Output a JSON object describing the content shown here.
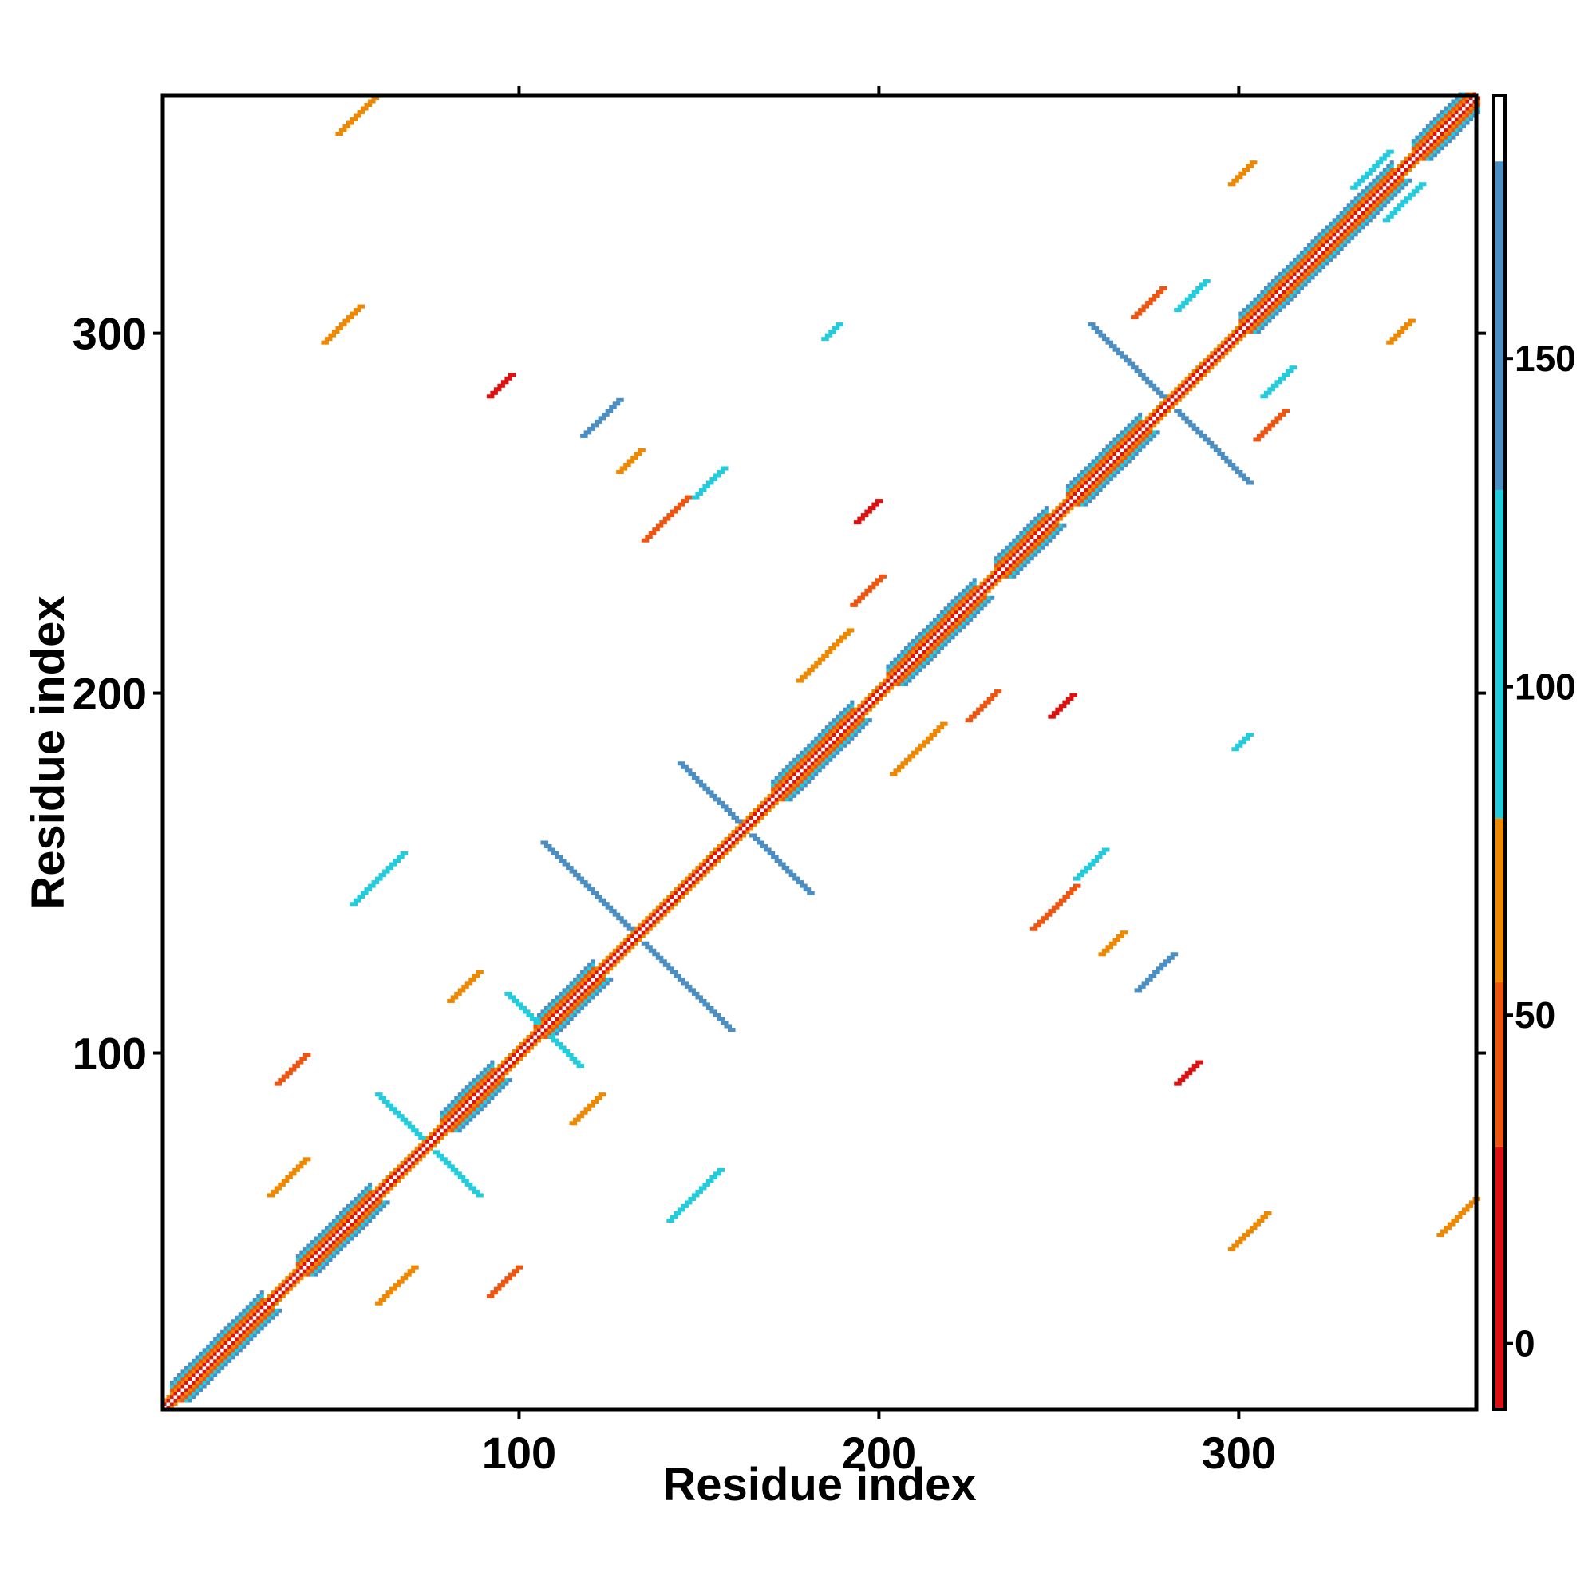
{
  "chart_data": {
    "type": "heatmap",
    "title": "",
    "xlabel": "Residue index",
    "ylabel": "Residue index",
    "xlim": [
      1,
      366
    ],
    "ylim": [
      1,
      366
    ],
    "xticks": [
      100,
      200,
      300
    ],
    "yticks": [
      100,
      200,
      300
    ],
    "colorbar": {
      "range": [
        -10,
        190
      ],
      "ticks": [
        0,
        50,
        100,
        150
      ],
      "bands": [
        {
          "from": -10,
          "to": 30,
          "color": "#dd1111"
        },
        {
          "from": 30,
          "to": 55,
          "color": "#ee5511"
        },
        {
          "from": 55,
          "to": 80,
          "color": "#ee8800"
        },
        {
          "from": 80,
          "to": 180,
          "color": "#22ccdd"
        },
        {
          "from": 180,
          "to": 190,
          "color": "#ffffff"
        }
      ],
      "steel_band": {
        "from": 130,
        "to": 180,
        "color": "#4a8ec4"
      }
    },
    "features": [
      {
        "kind": "diagonal",
        "x0": 1,
        "x1": 366
      },
      {
        "kind": "helix",
        "x0": 3,
        "x1": 28
      },
      {
        "kind": "helix",
        "x0": 38,
        "x1": 58
      },
      {
        "kind": "helix",
        "x0": 78,
        "x1": 92
      },
      {
        "kind": "helix",
        "x0": 104,
        "x1": 120
      },
      {
        "kind": "helix",
        "x0": 170,
        "x1": 192
      },
      {
        "kind": "helix",
        "x0": 202,
        "x1": 226
      },
      {
        "kind": "helix",
        "x0": 232,
        "x1": 246
      },
      {
        "kind": "helix",
        "x0": 252,
        "x1": 272
      },
      {
        "kind": "helix",
        "x0": 300,
        "x1": 342
      },
      {
        "kind": "helix",
        "x0": 348,
        "x1": 366
      },
      {
        "kind": "antiparallel",
        "cx": 74,
        "cy": 74,
        "len": 14,
        "color": "#22ccdd"
      },
      {
        "kind": "antiparallel",
        "cx": 132,
        "cy": 132,
        "len": 26,
        "color": "#4a8ec4"
      },
      {
        "kind": "antiparallel",
        "cx": 162,
        "cy": 162,
        "len": 18,
        "color": "#4a8ec4"
      },
      {
        "kind": "antiparallel",
        "cx": 280,
        "cy": 280,
        "len": 22,
        "color": "#4a8ec4"
      },
      {
        "kind": "antiparallel",
        "cx": 106,
        "cy": 106,
        "len": 10,
        "color": "#22ccdd"
      },
      {
        "kind": "blob",
        "x": 36,
        "y": 95,
        "len": 8,
        "color": "#ee5511"
      },
      {
        "kind": "blob",
        "x": 95,
        "y": 36,
        "len": 8,
        "color": "#ee5511"
      },
      {
        "kind": "blob",
        "x": 35,
        "y": 65,
        "len": 10,
        "color": "#ee8800"
      },
      {
        "kind": "blob",
        "x": 65,
        "y": 35,
        "len": 10,
        "color": "#ee8800"
      },
      {
        "kind": "blob",
        "x": 94,
        "y": 285,
        "len": 6,
        "color": "#dd1111"
      },
      {
        "kind": "blob",
        "x": 285,
        "y": 94,
        "len": 6,
        "color": "#dd1111"
      },
      {
        "kind": "blob",
        "x": 140,
        "y": 248,
        "len": 12,
        "color": "#ee5511"
      },
      {
        "kind": "blob",
        "x": 248,
        "y": 140,
        "len": 12,
        "color": "#ee5511"
      },
      {
        "kind": "blob",
        "x": 196,
        "y": 250,
        "len": 6,
        "color": "#dd1111"
      },
      {
        "kind": "blob",
        "x": 250,
        "y": 196,
        "len": 6,
        "color": "#dd1111"
      },
      {
        "kind": "blob",
        "x": 196,
        "y": 228,
        "len": 8,
        "color": "#ee5511"
      },
      {
        "kind": "blob",
        "x": 228,
        "y": 196,
        "len": 8,
        "color": "#ee5511"
      },
      {
        "kind": "blob",
        "x": 184,
        "y": 210,
        "len": 14,
        "color": "#ee8800"
      },
      {
        "kind": "blob",
        "x": 210,
        "y": 184,
        "len": 14,
        "color": "#ee8800"
      },
      {
        "kind": "blob",
        "x": 274,
        "y": 308,
        "len": 8,
        "color": "#ee5511"
      },
      {
        "kind": "blob",
        "x": 308,
        "y": 274,
        "len": 8,
        "color": "#ee5511"
      },
      {
        "kind": "blob",
        "x": 50,
        "y": 302,
        "len": 10,
        "color": "#ee8800"
      },
      {
        "kind": "blob",
        "x": 302,
        "y": 50,
        "len": 10,
        "color": "#ee8800"
      },
      {
        "kind": "blob",
        "x": 54,
        "y": 360,
        "len": 10,
        "color": "#ee8800"
      },
      {
        "kind": "blob",
        "x": 360,
        "y": 54,
        "len": 10,
        "color": "#ee8800"
      },
      {
        "kind": "blob",
        "x": 122,
        "y": 276,
        "len": 10,
        "color": "#4a8ec4"
      },
      {
        "kind": "blob",
        "x": 276,
        "y": 122,
        "len": 10,
        "color": "#4a8ec4"
      },
      {
        "kind": "blob",
        "x": 130,
        "y": 264,
        "len": 6,
        "color": "#ee8800"
      },
      {
        "kind": "blob",
        "x": 264,
        "y": 130,
        "len": 6,
        "color": "#ee8800"
      },
      {
        "kind": "blob",
        "x": 152,
        "y": 258,
        "len": 8,
        "color": "#22ccdd"
      },
      {
        "kind": "blob",
        "x": 258,
        "y": 152,
        "len": 8,
        "color": "#22ccdd"
      },
      {
        "kind": "blob",
        "x": 310,
        "y": 286,
        "len": 8,
        "color": "#22ccdd"
      },
      {
        "kind": "blob",
        "x": 286,
        "y": 310,
        "len": 8,
        "color": "#22ccdd"
      },
      {
        "kind": "blob",
        "x": 344,
        "y": 300,
        "len": 6,
        "color": "#ee8800"
      },
      {
        "kind": "blob",
        "x": 300,
        "y": 344,
        "len": 6,
        "color": "#ee8800"
      },
      {
        "kind": "blob",
        "x": 345,
        "y": 336,
        "len": 10,
        "color": "#22ccdd"
      },
      {
        "kind": "blob",
        "x": 336,
        "y": 345,
        "len": 10,
        "color": "#22ccdd"
      },
      {
        "kind": "blob",
        "x": 60,
        "y": 148,
        "len": 14,
        "color": "#22ccdd"
      },
      {
        "kind": "blob",
        "x": 148,
        "y": 60,
        "len": 14,
        "color": "#22ccdd"
      },
      {
        "kind": "blob",
        "x": 84,
        "y": 118,
        "len": 8,
        "color": "#ee8800"
      },
      {
        "kind": "blob",
        "x": 118,
        "y": 84,
        "len": 8,
        "color": "#ee8800"
      },
      {
        "kind": "blob",
        "x": 186,
        "y": 300,
        "len": 4,
        "color": "#22ccdd"
      },
      {
        "kind": "blob",
        "x": 300,
        "y": 186,
        "len": 4,
        "color": "#22ccdd"
      }
    ]
  }
}
